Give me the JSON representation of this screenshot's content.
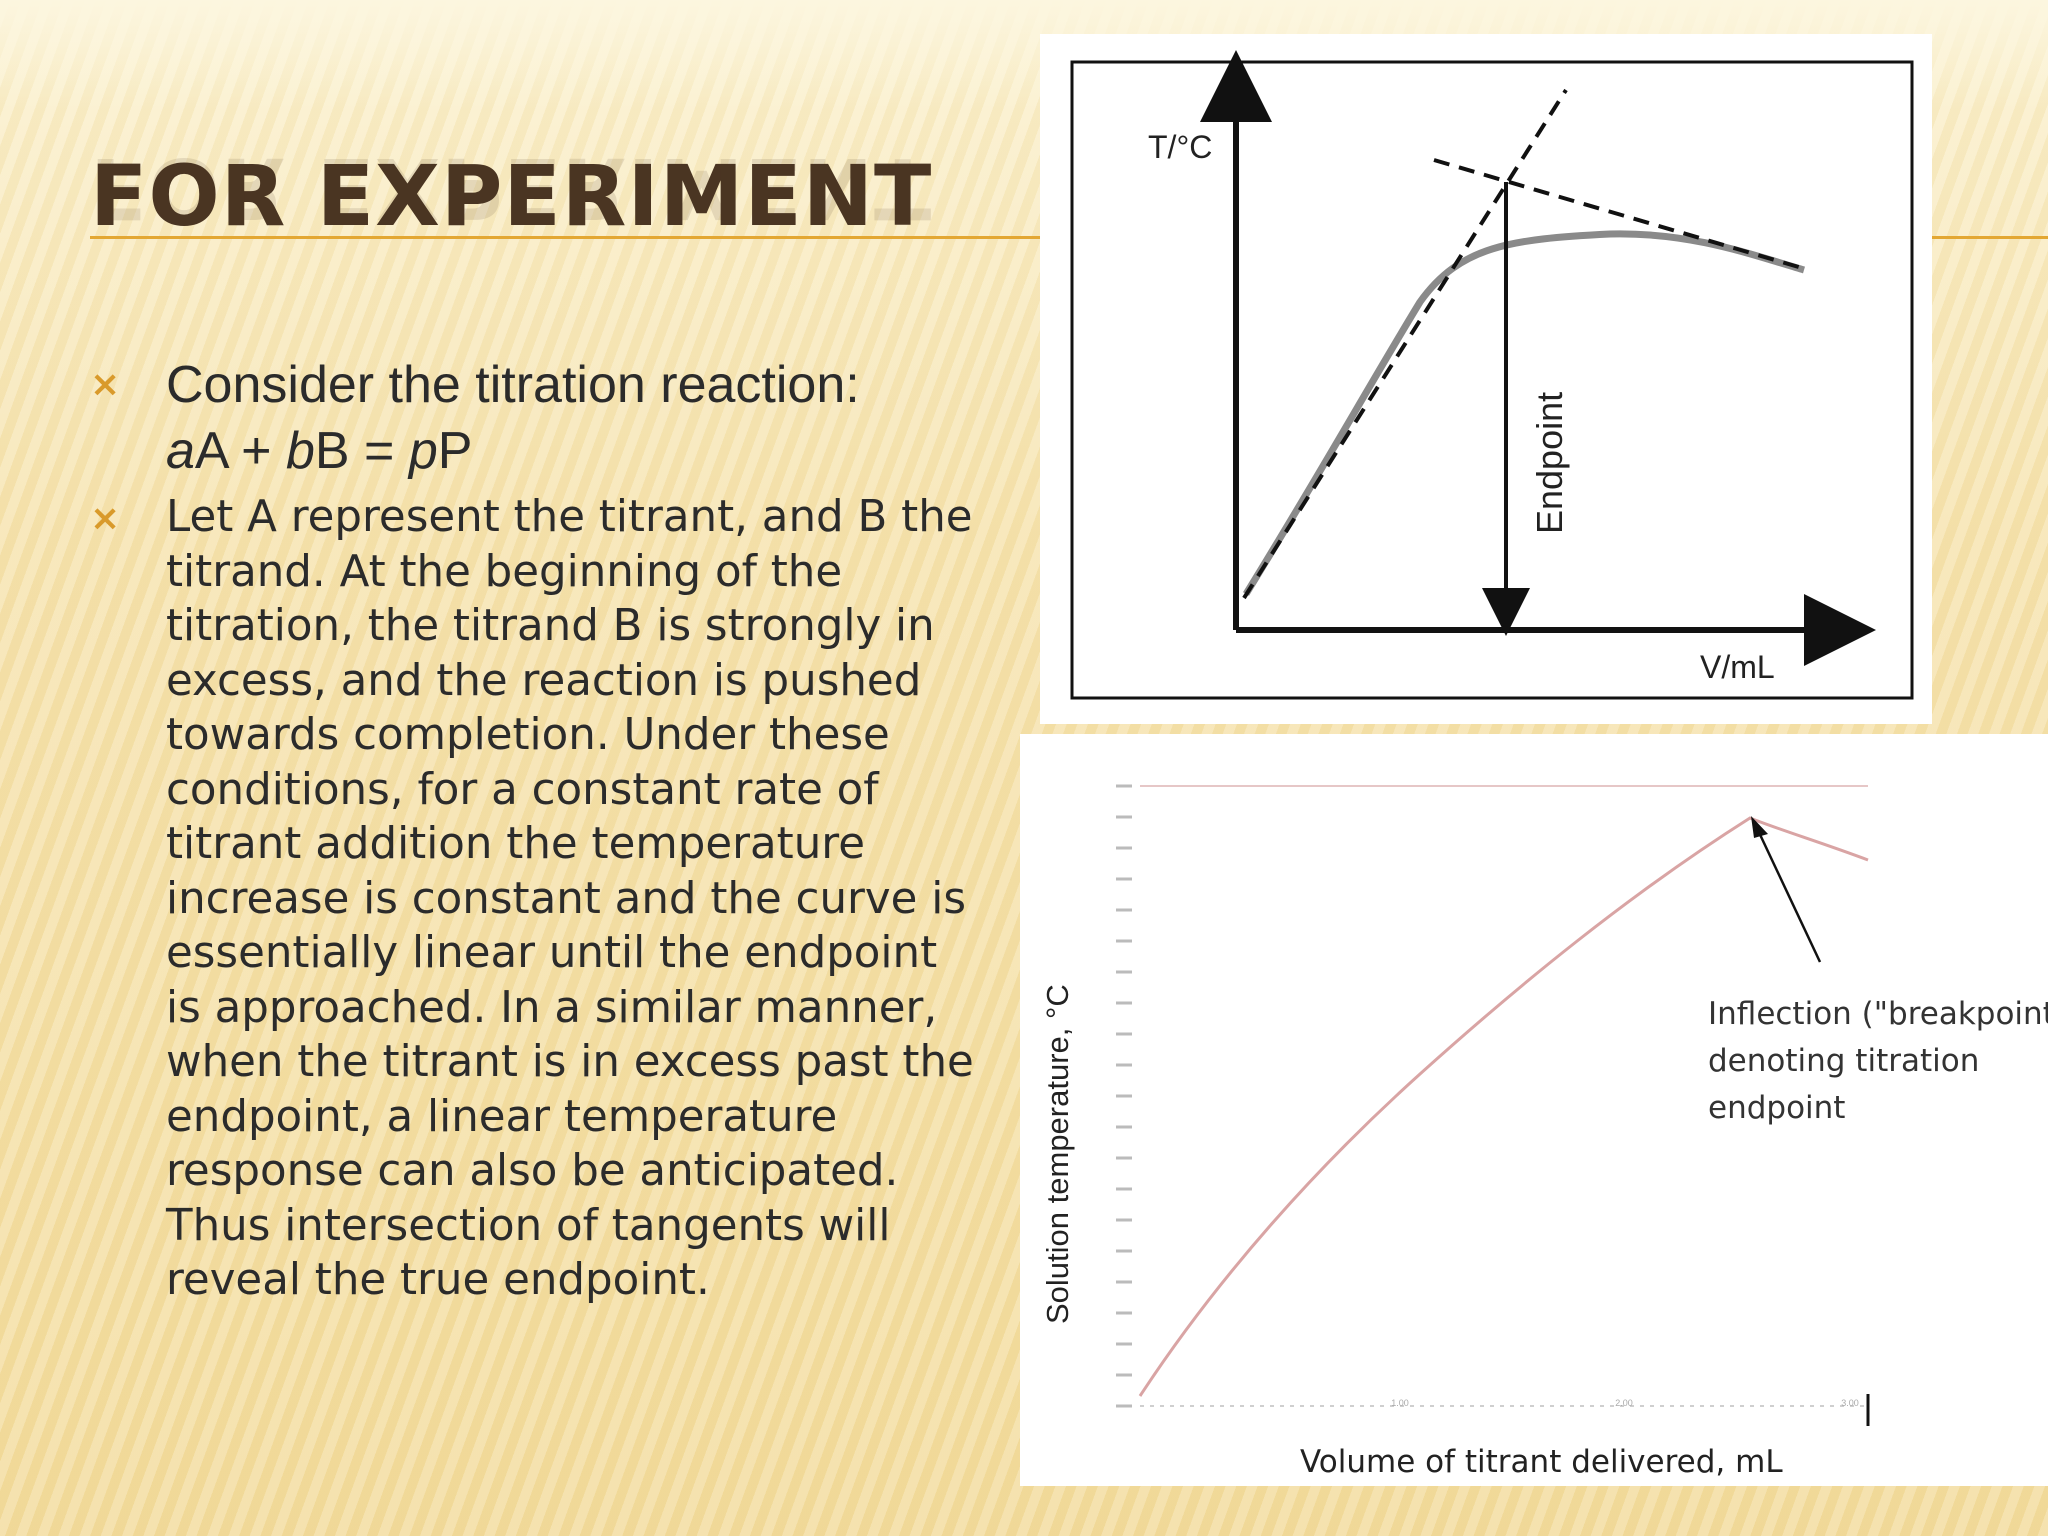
{
  "slide": {
    "title": "FOR EXPERIMENT",
    "bullet_marker": "×",
    "bullets": {
      "b1": {
        "text": "Consider the titration reaction:",
        "equation": {
          "a": "a",
          "A": "A + ",
          "b": "b",
          "B": "B = ",
          "p": "p",
          "P": "P"
        }
      },
      "b2": {
        "lines": [
          "Let A represent the titrant, and B the",
          "titrand. At the beginning of the",
          "titration, the titrand B is strongly in",
          "excess, and the reaction is pushed",
          "towards completion. Under these",
          "conditions, for a constant rate of",
          "titrant addition the temperature",
          "increase is constant and the curve is",
          "essentially linear until the endpoint",
          "is approached. In a similar manner,",
          "when the titrant is in excess past the",
          "endpoint, a linear temperature",
          "response can also be anticipated.",
          "Thus intersection of tangents will",
          "reveal the true endpoint."
        ]
      }
    }
  },
  "colors": {
    "title": "#4a3522",
    "accent": "#e3a733",
    "bullet": "#d99a2b",
    "body_text": "#2b2b2b",
    "curve2": "#d9a4a4"
  },
  "chart_data": [
    {
      "type": "line",
      "title": "",
      "ylabel": "T/°C",
      "xlabel": "V/mL",
      "annotations": [
        "Endpoint"
      ],
      "series": [
        {
          "values": [
            [
              0,
              0
            ],
            [
              0.5,
              0.5
            ],
            [
              0.8,
              0.72
            ],
            [
              1.1,
              0.76
            ],
            [
              1.5,
              0.7
            ]
          ]
        },
        {
          "values": [
            [
              0,
              0
            ],
            [
              1.3,
              1.1
            ]
          ]
        },
        {
          "values": [
            [
              0.85,
              0.75
            ],
            [
              2.0,
              0.56
            ]
          ]
        }
      ]
    },
    {
      "type": "line",
      "title": "",
      "ylabel": "Solution temperature, °C",
      "xlabel": "Volume of titrant delivered, mL",
      "annotations": [
        "Inflection (\"breakpoint\")",
        "denoting titration",
        "endpoint"
      ],
      "x_ticks": [
        "1.00",
        "2.00",
        "3.00"
      ],
      "series": [
        {
          "values": [
            [
              0.0,
              18.0
            ],
            [
              1.0,
              21.0
            ],
            [
              2.0,
              23.5
            ],
            [
              2.6,
              25.2
            ],
            [
              3.0,
              24.7
            ]
          ]
        }
      ]
    }
  ]
}
